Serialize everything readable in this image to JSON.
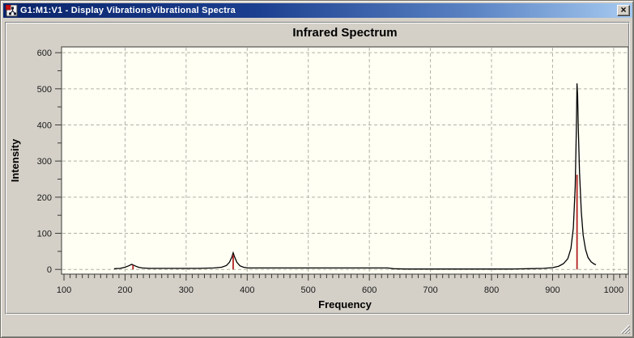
{
  "window": {
    "title": "G1:M1:V1 - Display VibrationsVibrational Spectra",
    "icons": {
      "app_icon": "molecule-document",
      "close_icon": "×",
      "resize_grip": "diagonal-hatch"
    },
    "titlebar_colors": {
      "left": "#0a246a",
      "right": "#a6caf0"
    }
  },
  "chart_data": {
    "type": "line",
    "title": "Infrared Spectrum",
    "xlabel": "Frequency",
    "ylabel": "Intensity",
    "xlim": [
      96,
      1024
    ],
    "ylim": [
      -13,
      616
    ],
    "x_ticks": [
      100,
      200,
      300,
      400,
      500,
      600,
      700,
      800,
      900,
      1000
    ],
    "y_ticks": [
      0,
      100,
      200,
      300,
      400,
      500,
      600
    ],
    "x_minor_step": 10,
    "x_minor_range": [
      100,
      1020
    ],
    "y_minor_step": 50,
    "y_minor_range": [
      0,
      600
    ],
    "x_grid": [
      200,
      300,
      400,
      500,
      600,
      700,
      800,
      900,
      1000
    ],
    "y_grid": [
      0,
      100,
      200,
      300,
      400,
      500,
      600
    ],
    "grid_style": "dashed",
    "legend": "none",
    "plot_bg": "#fffff4",
    "grid_color": "#b2b1a5",
    "axis_color": "#3a3a34",
    "series": [
      {
        "name": "ir-spectrum-envelope",
        "type": "line",
        "color": "#000000",
        "points": [
          [
            182,
            2
          ],
          [
            192,
            3
          ],
          [
            200,
            6
          ],
          [
            206,
            10
          ],
          [
            211,
            14
          ],
          [
            216,
            10
          ],
          [
            222,
            6
          ],
          [
            228,
            4
          ],
          [
            240,
            3
          ],
          [
            260,
            3
          ],
          [
            290,
            3
          ],
          [
            320,
            3
          ],
          [
            345,
            4
          ],
          [
            358,
            6
          ],
          [
            366,
            11
          ],
          [
            371,
            20
          ],
          [
            375,
            35
          ],
          [
            377,
            46
          ],
          [
            379,
            36
          ],
          [
            383,
            20
          ],
          [
            388,
            10
          ],
          [
            394,
            6
          ],
          [
            402,
            4
          ],
          [
            430,
            4
          ],
          [
            500,
            4
          ],
          [
            570,
            4
          ],
          [
            630,
            4
          ],
          [
            640,
            2
          ],
          [
            660,
            1
          ],
          [
            720,
            1
          ],
          [
            780,
            1
          ],
          [
            830,
            1
          ],
          [
            860,
            2
          ],
          [
            885,
            3
          ],
          [
            900,
            5
          ],
          [
            910,
            9
          ],
          [
            918,
            16
          ],
          [
            925,
            30
          ],
          [
            930,
            58
          ],
          [
            934,
            115
          ],
          [
            937,
            230
          ],
          [
            939,
            400
          ],
          [
            940,
            515
          ],
          [
            941,
            480
          ],
          [
            942,
            400
          ],
          [
            944,
            270
          ],
          [
            947,
            160
          ],
          [
            950,
            95
          ],
          [
            954,
            55
          ],
          [
            958,
            33
          ],
          [
            963,
            21
          ],
          [
            968,
            15
          ],
          [
            971,
            13
          ]
        ]
      },
      {
        "name": "ir-peak-sticks",
        "type": "vlines",
        "color": "#b22222",
        "baseline": 0,
        "points": [
          [
            213,
            12
          ],
          [
            377,
            40
          ],
          [
            940,
            262
          ]
        ]
      }
    ]
  }
}
